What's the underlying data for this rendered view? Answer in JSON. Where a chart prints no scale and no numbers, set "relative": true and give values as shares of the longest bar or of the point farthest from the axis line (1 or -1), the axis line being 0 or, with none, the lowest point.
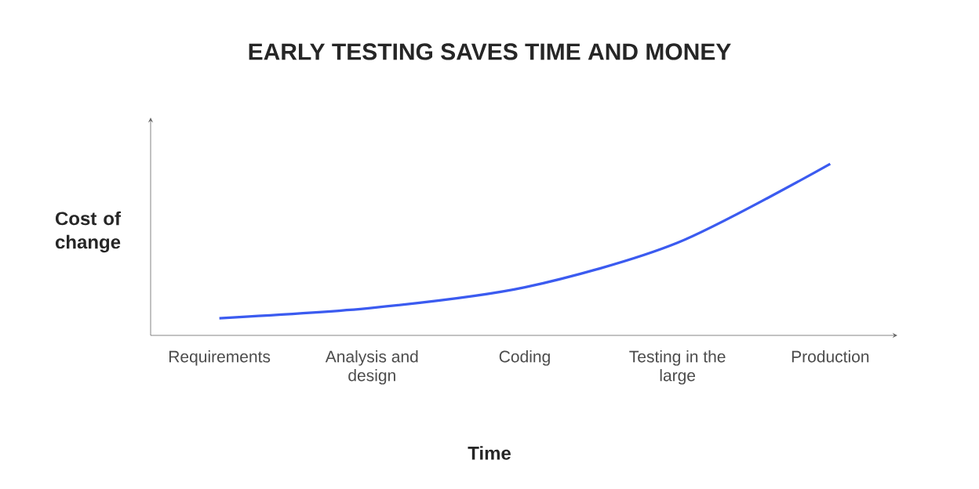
{
  "chart_data": {
    "type": "line",
    "title": "EARLY TESTING SAVES TIME AND MONEY",
    "xlabel": "Time",
    "ylabel": "Cost of change",
    "categories": [
      "Requirements",
      "Analysis and design",
      "Coding",
      "Testing in the large",
      "Production"
    ],
    "values": [
      0.1,
      0.16,
      0.28,
      0.54,
      1
    ],
    "color": "#3b5bf0",
    "relative": true
  }
}
